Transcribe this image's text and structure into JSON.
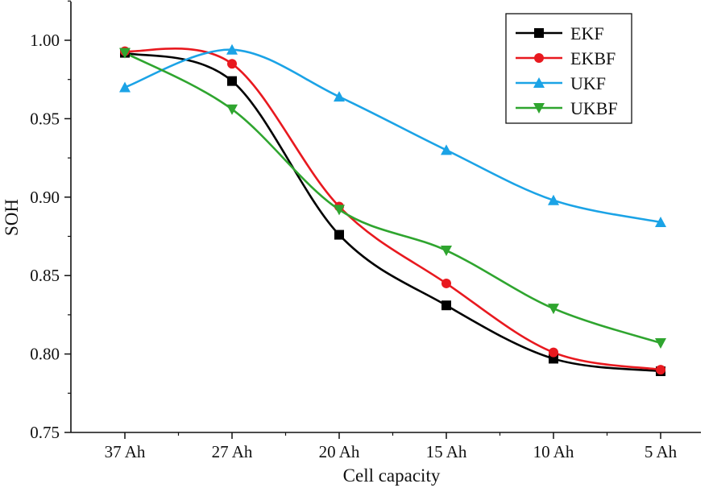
{
  "chart_data": {
    "type": "line",
    "title": "",
    "xlabel": "Cell capacity",
    "ylabel": "SOH",
    "categories": [
      "37 Ah",
      "27 Ah",
      "20 Ah",
      "15 Ah",
      "10 Ah",
      "5 Ah"
    ],
    "ylim": [
      0.75,
      1.025
    ],
    "yticks": [
      "0.75",
      "0.80",
      "0.85",
      "0.90",
      "0.95",
      "1.00"
    ],
    "grid": false,
    "legend_position": "top-right",
    "series": [
      {
        "name": "EKF",
        "color": "#000000",
        "marker": "square",
        "values": [
          0.992,
          0.974,
          0.876,
          0.831,
          0.797,
          0.789
        ]
      },
      {
        "name": "EKBF",
        "color": "#e8191f",
        "marker": "circle",
        "values": [
          0.993,
          0.985,
          0.894,
          0.845,
          0.801,
          0.79
        ]
      },
      {
        "name": "UKF",
        "color": "#1ba3e6",
        "marker": "triangle-up",
        "values": [
          0.97,
          0.994,
          0.964,
          0.93,
          0.898,
          0.884
        ]
      },
      {
        "name": "UKBF",
        "color": "#2fa52f",
        "marker": "triangle-down",
        "values": [
          0.992,
          0.956,
          0.892,
          0.866,
          0.829,
          0.807
        ]
      }
    ]
  }
}
